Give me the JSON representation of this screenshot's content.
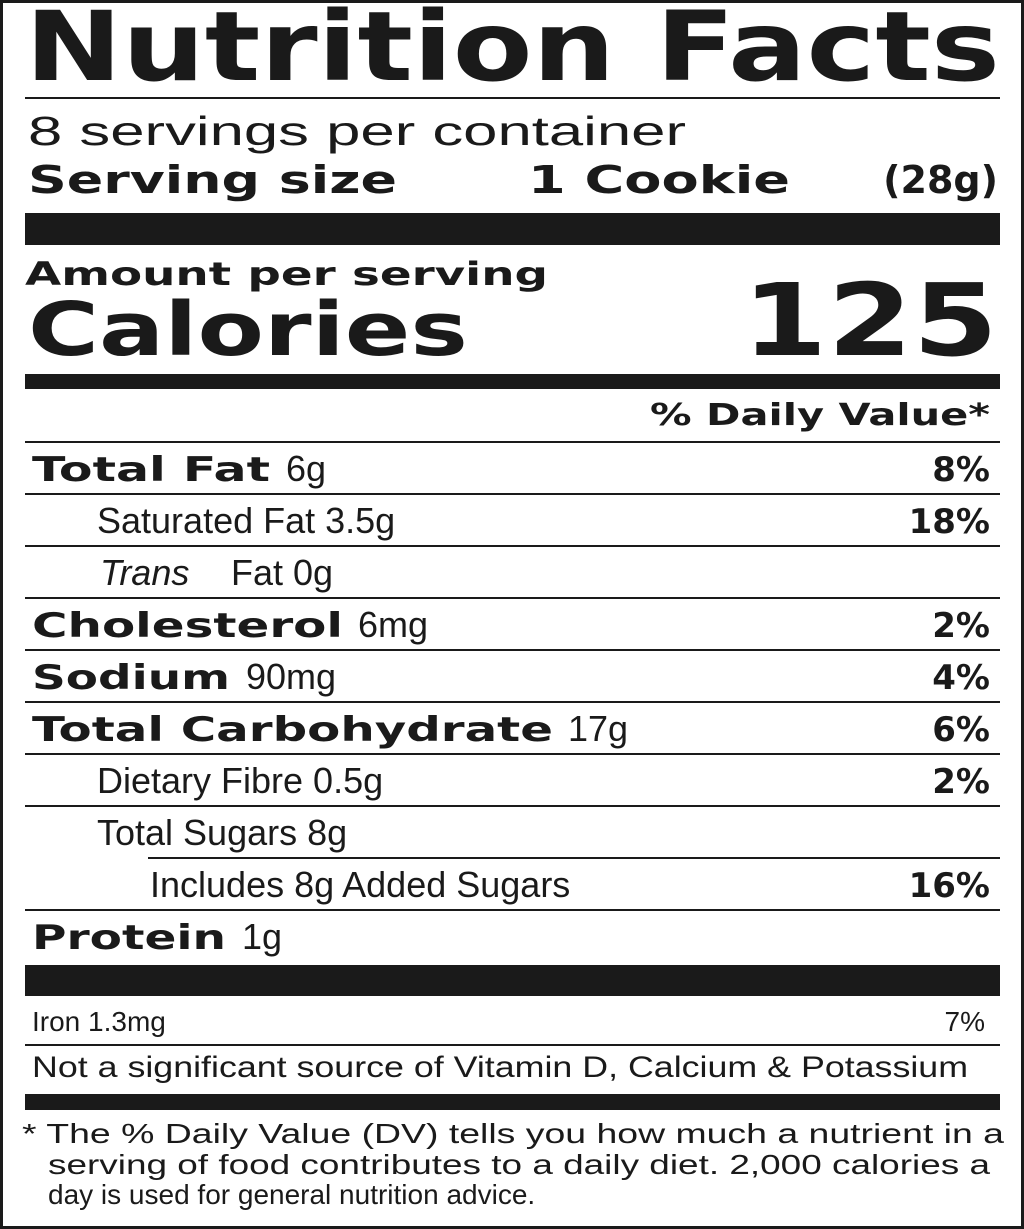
{
  "label": {
    "title": "Nutrition Facts",
    "servings": "8 servings per container",
    "serving_size_label": "Serving size",
    "serving_size": "1 Cookie",
    "serving_weight": "(28g)",
    "amount_per_serving": "Amount per serving",
    "calories_label": "Calories",
    "calories": "125",
    "daily_value_header": "% Daily Value*",
    "nutrients": [
      {
        "name": "Total Fat",
        "amount": "6g",
        "dv": "8%"
      },
      {
        "name": "Saturated Fat 3.5g",
        "dv": "18%"
      },
      {
        "name": "Trans",
        "amount": "Fat 0g"
      },
      {
        "name": "Cholesterol",
        "amount": "6mg",
        "dv": "2%"
      },
      {
        "name": "Sodium",
        "amount": "90mg",
        "dv": "4%"
      },
      {
        "name": "Total Carbohydrate",
        "amount": "17g",
        "dv": "6%"
      },
      {
        "name": "Dietary Fibre 0.5g",
        "dv": "2%"
      },
      {
        "name": "Total Sugars 8g"
      },
      {
        "name": "Includes 8g Added Sugars",
        "dv": "16%"
      },
      {
        "name": "Protein",
        "amount": "1g"
      }
    ],
    "iron": {
      "name": "Iron 1.3mg",
      "dv": "7%"
    },
    "not_significant": "Not a significant source of Vitamin D, Calcium & Potassium",
    "footnote": [
      "* The % Daily Value (DV) tells you how much a nutrient in  a",
      "serving of food contributes to a daily diet. 2,000 calories a",
      "day is used for general nutrition advice."
    ]
  }
}
